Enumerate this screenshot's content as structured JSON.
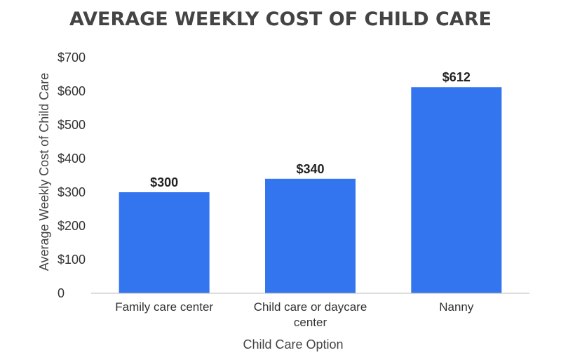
{
  "chart_data": {
    "type": "bar",
    "title": "AVERAGE WEEKLY COST OF CHILD CARE",
    "xlabel": "Child Care Option",
    "ylabel": "Average Weekly Cost of Child Care",
    "categories": [
      "Family care center",
      "Child care or daycare center",
      "Nanny"
    ],
    "series": [
      {
        "values": [
          300,
          340,
          612
        ],
        "data_labels": [
          "$300",
          "$340",
          "$612"
        ]
      }
    ],
    "ylim": [
      0,
      700
    ],
    "yticks": [
      0,
      100,
      200,
      300,
      400,
      500,
      600,
      700
    ],
    "ytick_labels": [
      "0",
      "$100",
      "$200",
      "$300",
      "$400",
      "$500",
      "$600",
      "$700"
    ],
    "grid": false,
    "bar_color": "#3375EE",
    "axis_color": "#BBBBBB"
  }
}
